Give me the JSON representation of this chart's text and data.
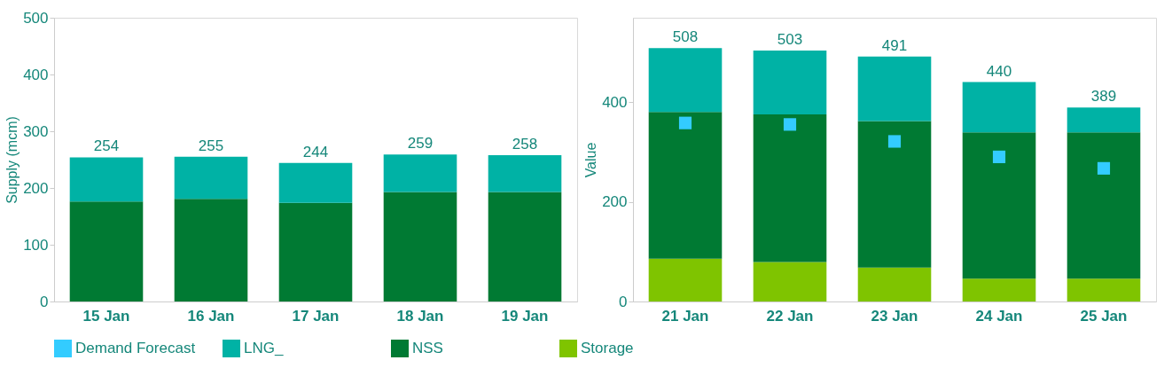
{
  "chart_data": [
    {
      "type": "bar",
      "stacked": true,
      "ylabel": "Supply (mcm)",
      "categories": [
        "15 Jan",
        "16 Jan",
        "17 Jan",
        "18 Jan",
        "19 Jan"
      ],
      "ylim": [
        0,
        500
      ],
      "yticks": [
        0,
        100,
        200,
        300,
        400,
        500
      ],
      "grid": false,
      "legend": "bottom",
      "totals": [
        "254",
        "255",
        "244",
        "259",
        "258"
      ],
      "series": [
        {
          "name": "NSS",
          "color": "#007a33",
          "values": [
            176,
            181,
            174,
            193,
            193
          ]
        },
        {
          "name": "LNG_",
          "color": "#00b2a5",
          "values": [
            78,
            74,
            70,
            66,
            65
          ]
        }
      ]
    },
    {
      "type": "bar",
      "stacked": true,
      "ylabel": "Value",
      "categories": [
        "21 Jan",
        "22 Jan",
        "23 Jan",
        "24 Jan",
        "25 Jan"
      ],
      "ylim": [
        0,
        569
      ],
      "yticks": [
        0,
        200,
        400
      ],
      "grid": false,
      "legend": "bottom",
      "totals": [
        "508",
        "503",
        "491",
        "440",
        "389"
      ],
      "series": [
        {
          "name": "Demand Forecast",
          "type": "scatter",
          "marker": "square",
          "color": "#33ccff",
          "values": [
            358,
            355,
            321,
            290,
            267
          ]
        },
        {
          "name": "Storage",
          "color": "#7fc400",
          "values": [
            86,
            79,
            68,
            46,
            46
          ]
        },
        {
          "name": "NSS",
          "color": "#007a33",
          "values": [
            294,
            296,
            294,
            293,
            293
          ]
        },
        {
          "name": "LNG_",
          "color": "#00b2a5",
          "values": [
            128,
            128,
            129,
            101,
            50
          ]
        }
      ]
    }
  ]
}
